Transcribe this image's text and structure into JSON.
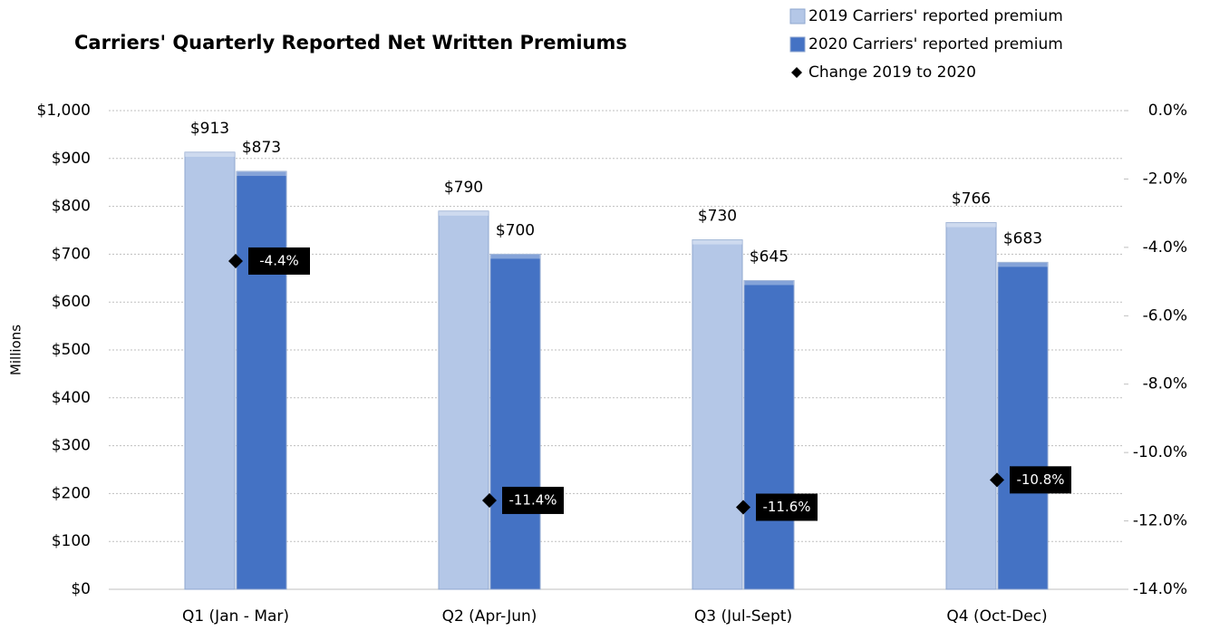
{
  "chart_data": {
    "type": "bar",
    "title": "Carriers' Quarterly Reported Net Written Premiums",
    "y_label": "Millions",
    "categories": [
      "Q1 (Jan - Mar)",
      "Q2 (Apr-Jun)",
      "Q3 (Jul-Sept)",
      "Q4 (Oct-Dec)"
    ],
    "series": [
      {
        "name": "2019 Carriers'  reported premium",
        "color": "#b4c7e7",
        "values": [
          913,
          790,
          730,
          766
        ],
        "value_labels": [
          "$913",
          "$790",
          "$730",
          "$766"
        ]
      },
      {
        "name": "2020 Carriers'  reported premium",
        "color": "#4472c4",
        "values": [
          873,
          700,
          645,
          683
        ],
        "value_labels": [
          "$873",
          "$700",
          "$645",
          "$683"
        ]
      },
      {
        "name": "Change 2019 to 2020",
        "type": "scatter",
        "axis": "y2",
        "color": "#000000",
        "values": [
          -4.4,
          -11.4,
          -11.6,
          -10.8
        ],
        "value_labels": [
          "-4.4%",
          "-11.4%",
          "-11.6%",
          "-10.8%"
        ]
      }
    ],
    "ylim": [
      0,
      1000
    ],
    "yticks": [
      {
        "value": 0,
        "label": "$0"
      },
      {
        "value": 100,
        "label": "$100"
      },
      {
        "value": 200,
        "label": "$200"
      },
      {
        "value": 300,
        "label": "$300"
      },
      {
        "value": 400,
        "label": "$400"
      },
      {
        "value": 500,
        "label": "$500"
      },
      {
        "value": 600,
        "label": "$600"
      },
      {
        "value": 700,
        "label": "$700"
      },
      {
        "value": 800,
        "label": "$800"
      },
      {
        "value": 900,
        "label": "$900"
      },
      {
        "value": 1000,
        "label": "$1,000"
      }
    ],
    "y2lim": [
      -14,
      0
    ],
    "y2ticks": [
      {
        "value": 0,
        "label": "0.0%"
      },
      {
        "value": -2,
        "label": "-2.0%"
      },
      {
        "value": -4,
        "label": "-4.0%"
      },
      {
        "value": -6,
        "label": "-6.0%"
      },
      {
        "value": -8,
        "label": "-8.0%"
      },
      {
        "value": -10,
        "label": "-10.0%"
      },
      {
        "value": -12,
        "label": "-12.0%"
      },
      {
        "value": -14,
        "label": "-14.0%"
      }
    ],
    "grid": true
  }
}
